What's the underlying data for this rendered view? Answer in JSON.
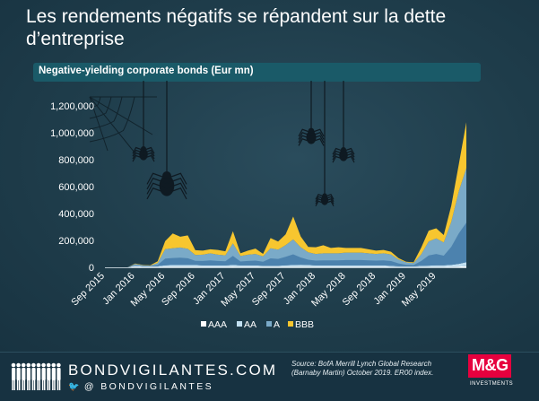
{
  "title": "Les rendements négatifs se répandent sur la dette d’entreprise",
  "subtitle": "Negative-yielding corporate bonds (Eur mn)",
  "footer": {
    "brand": "BONDVIGILANTES.COM",
    "twitter": "@ BONDVIGILANTES",
    "source": "Source: BofA Merrill Lynch Global Research (Barnaby Martin) October 2019. ER00 index.",
    "logo": "M&G",
    "logo_sub": "INVESTMENTS"
  },
  "colors": {
    "AAA": "#ffffff",
    "AA": "#c2e0f2",
    "A": "#7aaac8",
    "BBB": "#f7c62f",
    "A_dark": "#3d74a6",
    "background": "#1d3a48",
    "accent_bar": "#1a5a68"
  },
  "chart_data": {
    "type": "area",
    "stacked": true,
    "ylim": [
      0,
      1200000
    ],
    "yticks": [
      0,
      200000,
      400000,
      600000,
      800000,
      1000000,
      1200000
    ],
    "ytick_labels": [
      "0",
      "200,000",
      "400,000",
      "600,000",
      "800,000",
      "1,000,000",
      "1,200,000"
    ],
    "x_tick_labels": [
      "Sep 2015",
      "Jan 2016",
      "May 2016",
      "Sep 2016",
      "Jan 2017",
      "May 2017",
      "Sep 2017",
      "Jan 2018",
      "May 2018",
      "Sep 2018",
      "Jan 2019",
      "May 2019"
    ],
    "x": [
      "Sep 2015",
      "Oct 2015",
      "Nov 2015",
      "Dec 2015",
      "Jan 2016",
      "Feb 2016",
      "Mar 2016",
      "Apr 2016",
      "May 2016",
      "Jun 2016",
      "Jul 2016",
      "Aug 2016",
      "Sep 2016",
      "Oct 2016",
      "Nov 2016",
      "Dec 2016",
      "Jan 2017",
      "Feb 2017",
      "Mar 2017",
      "Apr 2017",
      "May 2017",
      "Jun 2017",
      "Jul 2017",
      "Aug 2017",
      "Sep 2017",
      "Oct 2017",
      "Nov 2017",
      "Dec 2017",
      "Jan 2018",
      "Feb 2018",
      "Mar 2018",
      "Apr 2018",
      "May 2018",
      "Jun 2018",
      "Jul 2018",
      "Aug 2018",
      "Sep 2018",
      "Oct 2018",
      "Nov 2018",
      "Dec 2018",
      "Jan 2019",
      "Feb 2019",
      "Mar 2019",
      "Apr 2019",
      "May 2019",
      "Jun 2019",
      "Jul 2019",
      "Aug 2019",
      "Sep 2019"
    ],
    "series": [
      {
        "name": "AAA",
        "values": [
          0,
          0,
          0,
          0,
          5000,
          3000,
          3000,
          3000,
          5000,
          5000,
          5000,
          5000,
          5000,
          4000,
          4000,
          4000,
          4000,
          6000,
          4000,
          4000,
          4000,
          4000,
          4000,
          4000,
          5000,
          5000,
          5000,
          5000,
          4000,
          4000,
          4000,
          4000,
          4000,
          4000,
          4000,
          4000,
          4000,
          4000,
          3000,
          2000,
          2000,
          2000,
          3000,
          3000,
          3000,
          3000,
          4000,
          6000,
          8000
        ]
      },
      {
        "name": "AA",
        "values": [
          0,
          0,
          0,
          0,
          8000,
          5000,
          4000,
          5000,
          10000,
          12000,
          12000,
          12000,
          12000,
          10000,
          10000,
          10000,
          10000,
          12000,
          10000,
          10000,
          10000,
          8000,
          8000,
          8000,
          10000,
          12000,
          14000,
          12000,
          10000,
          10000,
          10000,
          10000,
          10000,
          10000,
          10000,
          10000,
          10000,
          10000,
          8000,
          6000,
          5000,
          5000,
          8000,
          10000,
          12000,
          12000,
          14000,
          20000,
          30000
        ]
      },
      {
        "name": "A",
        "values": [
          0,
          0,
          0,
          0,
          12000,
          8000,
          6000,
          25000,
          120000,
          125000,
          130000,
          120000,
          75000,
          80000,
          90000,
          80000,
          75000,
          160000,
          70000,
          80000,
          85000,
          70000,
          130000,
          120000,
          150000,
          190000,
          130000,
          95000,
          85000,
          90000,
          90000,
          90000,
          95000,
          95000,
          95000,
          90000,
          85000,
          90000,
          85000,
          50000,
          30000,
          25000,
          85000,
          180000,
          200000,
          170000,
          320000,
          540000,
          700000
        ]
      },
      {
        "name": "BBB",
        "values": [
          0,
          0,
          0,
          0,
          3000,
          2000,
          2000,
          12000,
          60000,
          110000,
          80000,
          100000,
          35000,
          30000,
          30000,
          35000,
          30000,
          90000,
          20000,
          30000,
          40000,
          18000,
          75000,
          60000,
          80000,
          170000,
          80000,
          40000,
          50000,
          60000,
          40000,
          45000,
          35000,
          35000,
          35000,
          30000,
          25000,
          25000,
          20000,
          10000,
          5000,
          5000,
          50000,
          80000,
          75000,
          55000,
          120000,
          200000,
          340000
        ]
      }
    ],
    "legend": [
      "AAA",
      "AA",
      "A",
      "BBB"
    ],
    "legend_position": "bottom",
    "grid": false
  }
}
